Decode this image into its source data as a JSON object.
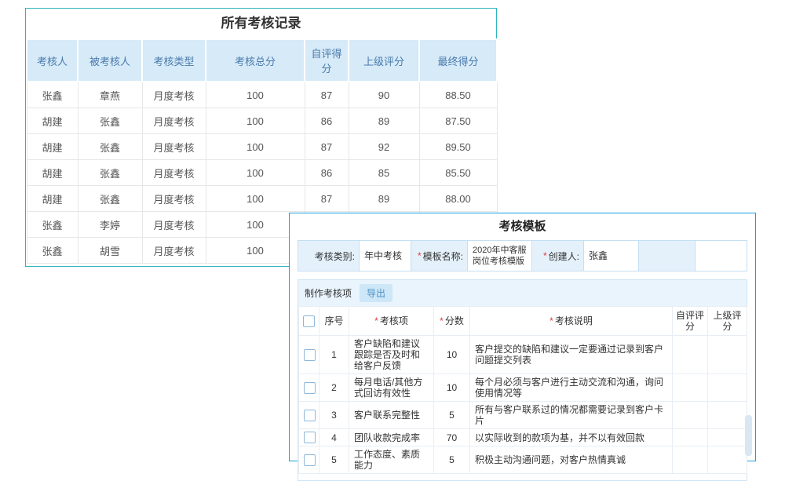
{
  "colors": {
    "records_panel_border": "#2eb4bd",
    "template_panel_border": "#1b9fdd",
    "table_header_bg": "#d6eaf8",
    "table_header_text": "#4a7aab",
    "form_label_bg": "#e4f1fb",
    "toolbar_bg": "#e9f4fc",
    "export_button_bg": "#cde7f8",
    "export_button_text": "#4a8fc7",
    "required_color": "#e03a3a"
  },
  "records_panel": {
    "title": "所有考核记录",
    "columns": [
      "考核人",
      "被考核人",
      "考核类型",
      "考核总分",
      "自评得分",
      "上级评分",
      "最终得分"
    ],
    "rows": [
      [
        "张鑫",
        "章燕",
        "月度考核",
        "100",
        "87",
        "90",
        "88.50"
      ],
      [
        "胡建",
        "张鑫",
        "月度考核",
        "100",
        "86",
        "89",
        "87.50"
      ],
      [
        "胡建",
        "张鑫",
        "月度考核",
        "100",
        "87",
        "92",
        "89.50"
      ],
      [
        "胡建",
        "张鑫",
        "月度考核",
        "100",
        "86",
        "85",
        "85.50"
      ],
      [
        "胡建",
        "张鑫",
        "月度考核",
        "100",
        "87",
        "89",
        "88.00"
      ],
      [
        "张鑫",
        "李婷",
        "月度考核",
        "100",
        "",
        "",
        ""
      ],
      [
        "张鑫",
        "胡雪",
        "月度考核",
        "100",
        "",
        "",
        ""
      ]
    ]
  },
  "template_panel": {
    "title": "考核模板",
    "required_marker": "*",
    "form": {
      "fields": [
        {
          "label": "考核类别:",
          "value": "年中考核",
          "required": false
        },
        {
          "label": "模板名称:",
          "value": "2020年中客服岗位考核模版",
          "required": true
        },
        {
          "label": "创建人:",
          "value": "张鑫",
          "required": true
        }
      ]
    },
    "items": {
      "heading": "制作考核项",
      "export_button": "导出",
      "columns": [
        {
          "label": "序号",
          "required": false
        },
        {
          "label": "考核项",
          "required": true
        },
        {
          "label": "分数",
          "required": true
        },
        {
          "label": "考核说明",
          "required": true
        },
        {
          "label": "自评评分",
          "required": false
        },
        {
          "label": "上级评分",
          "required": false
        }
      ],
      "rows": [
        {
          "no": "1",
          "item": "客户缺陷和建议跟踪是否及时和给客户反馈",
          "score": "10",
          "desc": "客户提交的缺陷和建议一定要通过记录到客户问题提交列表"
        },
        {
          "no": "2",
          "item": "每月电话/其他方式回访有效性",
          "score": "10",
          "desc": "每个月必须与客户进行主动交流和沟通，询问使用情况等"
        },
        {
          "no": "3",
          "item": "客户联系完整性",
          "score": "5",
          "desc": "所有与客户联系过的情况都需要记录到客户卡片"
        },
        {
          "no": "4",
          "item": "团队收款完成率",
          "score": "70",
          "desc": "以实际收到的款项为基，并不以有效回款"
        },
        {
          "no": "5",
          "item": "工作态度、素质能力",
          "score": "5",
          "desc": "积极主动沟通问题，对客户热情真诚"
        }
      ]
    }
  }
}
